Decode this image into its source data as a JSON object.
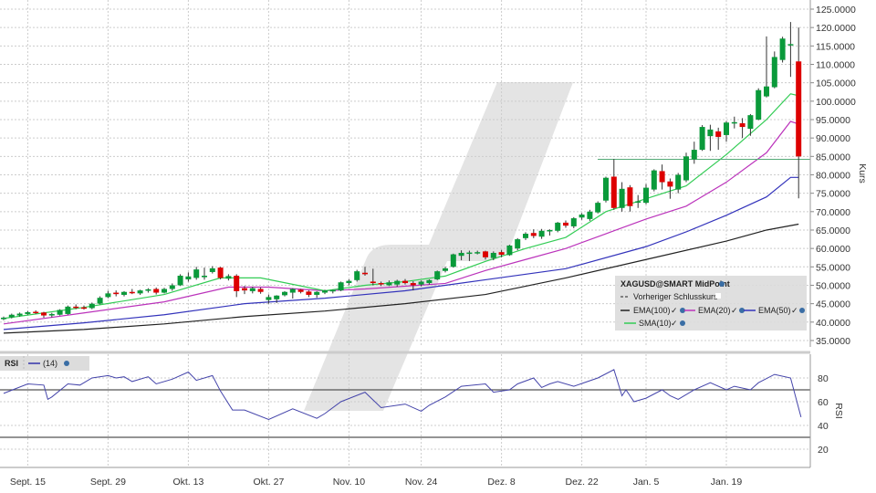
{
  "chart_data": {
    "type": "candlestick",
    "instrument_label": "XAGUSD@SMART MidPoint",
    "ylabel": "Kurs",
    "ylim": [
      32.5,
      127.5
    ],
    "yticks": [
      "125.0000",
      "120.0000",
      "115.0000",
      "110.0000",
      "105.0000",
      "100.0000",
      "95.0000",
      "90.0000",
      "85.0000",
      "80.0000",
      "75.0000",
      "70.0000",
      "65.0000",
      "60.0000",
      "55.0000",
      "50.0000",
      "45.0000",
      "40.0000",
      "35.0000"
    ],
    "grid": true,
    "x_axis_labels": [
      {
        "label": "Sept. 15",
        "i": 3
      },
      {
        "label": "Sept. 29",
        "i": 13
      },
      {
        "label": "Okt. 13",
        "i": 23
      },
      {
        "label": "Okt. 27",
        "i": 33
      },
      {
        "label": "Nov. 10",
        "i": 43
      },
      {
        "label": "Nov. 24",
        "i": 52
      },
      {
        "label": "Dez. 8",
        "i": 62
      },
      {
        "label": "Dez. 22",
        "i": 72
      },
      {
        "label": "Jan. 5",
        "i": 80
      },
      {
        "label": "Jan. 19",
        "i": 90
      }
    ],
    "ohlc": [
      [
        40.8,
        41.5,
        40.5,
        41.2
      ],
      [
        41.3,
        42.3,
        41,
        42
      ],
      [
        41.8,
        42.6,
        41.5,
        42.3
      ],
      [
        42.2,
        43,
        42,
        42.7
      ],
      [
        42.8,
        43.2,
        42.2,
        42.5
      ],
      [
        42.6,
        42.8,
        41.2,
        41.8
      ],
      [
        41.8,
        42.5,
        41.3,
        42.2
      ],
      [
        42,
        43.5,
        41.8,
        43.3
      ],
      [
        42.2,
        44.5,
        42,
        44.2
      ],
      [
        44.2,
        44.8,
        43.5,
        43.9
      ],
      [
        44,
        44.5,
        43.4,
        43.8
      ],
      [
        43.8,
        45.3,
        43.5,
        45
      ],
      [
        45,
        47,
        44.8,
        46.6
      ],
      [
        46.8,
        48.5,
        46.5,
        47.8
      ],
      [
        48,
        48.6,
        47,
        47.6
      ],
      [
        47.4,
        48.4,
        47,
        48.2
      ],
      [
        48.2,
        49,
        47.6,
        48
      ],
      [
        47.8,
        48.8,
        47.4,
        48.6
      ],
      [
        48.5,
        49.2,
        48,
        48.9
      ],
      [
        49,
        49.4,
        47.5,
        48
      ],
      [
        48,
        49.3,
        47.8,
        49
      ],
      [
        49,
        50.5,
        48.5,
        50
      ],
      [
        50,
        53,
        49.8,
        52.6
      ],
      [
        51.6,
        53.5,
        51,
        52.4
      ],
      [
        52,
        55,
        51.5,
        54.3
      ],
      [
        52.2,
        54.8,
        51.5,
        52.6
      ],
      [
        53.6,
        55.2,
        53.2,
        54.6
      ],
      [
        54.8,
        55,
        51.6,
        52
      ],
      [
        51.8,
        53,
        51.3,
        52.5
      ],
      [
        52.6,
        53,
        46.8,
        48.4
      ],
      [
        49.2,
        49.8,
        47.6,
        48.6
      ],
      [
        48.4,
        49.6,
        47.8,
        49.2
      ],
      [
        49,
        49.4,
        47.7,
        48.2
      ],
      [
        46,
        47.5,
        45,
        46.8
      ],
      [
        46.2,
        47.3,
        45.2,
        47.2
      ],
      [
        47.3,
        48.4,
        47,
        48.2
      ],
      [
        48,
        49.2,
        46.4,
        49
      ],
      [
        48.8,
        49,
        47.8,
        48.2
      ],
      [
        48.3,
        48.6,
        46.8,
        47.4
      ],
      [
        47.4,
        48.4,
        46.6,
        48.2
      ],
      [
        48,
        48.8,
        47.6,
        48.6
      ],
      [
        48.4,
        48.8,
        47.8,
        48.7
      ],
      [
        48.6,
        51,
        48.4,
        50.8
      ],
      [
        50.6,
        51.6,
        50,
        51.2
      ],
      [
        51.4,
        54.2,
        51,
        53.8
      ],
      [
        53.4,
        55,
        52.6,
        53
      ],
      [
        51,
        54.5,
        50,
        50.6
      ],
      [
        50.6,
        51,
        49.8,
        50.4
      ],
      [
        50,
        51.3,
        49.8,
        50.8
      ],
      [
        50.2,
        51.5,
        49.6,
        51.2
      ],
      [
        51.2,
        51.7,
        50.2,
        50.6
      ],
      [
        50.6,
        51.1,
        48.6,
        50
      ],
      [
        50.2,
        51.3,
        49.7,
        51
      ],
      [
        50.6,
        51.6,
        50.2,
        51.4
      ],
      [
        51.6,
        54,
        51.4,
        53.8
      ],
      [
        53.9,
        55,
        53.5,
        54.6
      ],
      [
        55,
        58.6,
        54.8,
        58.4
      ],
      [
        58,
        59.5,
        56.8,
        58.8
      ],
      [
        58.8,
        59.4,
        56.6,
        58.9
      ],
      [
        59,
        59.4,
        58.4,
        59
      ],
      [
        59.2,
        59.4,
        57,
        57.6
      ],
      [
        57.4,
        59.2,
        56.8,
        58.8
      ],
      [
        59,
        59.6,
        57.6,
        58.3
      ],
      [
        58.2,
        61,
        58,
        60.8
      ],
      [
        60,
        62.8,
        59.5,
        62.5
      ],
      [
        62.8,
        64.4,
        62.3,
        64
      ],
      [
        64.2,
        65.2,
        62.8,
        63.4
      ],
      [
        63.2,
        65.3,
        62.6,
        64.8
      ],
      [
        64.8,
        65.2,
        63.5,
        65
      ],
      [
        64.8,
        67.2,
        64.4,
        67
      ],
      [
        67,
        67.6,
        65.6,
        66.2
      ],
      [
        66,
        68.5,
        65.5,
        68.2
      ],
      [
        68.4,
        69.6,
        67.8,
        69.2
      ],
      [
        68,
        70.5,
        67.5,
        70
      ],
      [
        69.8,
        72.8,
        69.5,
        72.4
      ],
      [
        73,
        79.5,
        72.5,
        79.2
      ],
      [
        79.5,
        84.3,
        70.5,
        71
      ],
      [
        71,
        78,
        70,
        76.2
      ],
      [
        76.6,
        77.2,
        70,
        71.5
      ],
      [
        72.5,
        74.5,
        71,
        72.8
      ],
      [
        72.4,
        77.5,
        72,
        76.5
      ],
      [
        76,
        81.5,
        75.5,
        81.2
      ],
      [
        81,
        82.8,
        76,
        78
      ],
      [
        78.2,
        79,
        73.5,
        76.8
      ],
      [
        76,
        80.5,
        75,
        80
      ],
      [
        78.5,
        86,
        78,
        85
      ],
      [
        84.2,
        89,
        83,
        86.8
      ],
      [
        86.8,
        93.5,
        86.5,
        93
      ],
      [
        90.5,
        93.6,
        86.5,
        92.3
      ],
      [
        91.8,
        92.8,
        86.8,
        90.3
      ],
      [
        90.8,
        94.6,
        89,
        94.2
      ],
      [
        94,
        95.8,
        92.6,
        94.3
      ],
      [
        94,
        95.4,
        90,
        93
      ],
      [
        92.5,
        96.5,
        90.6,
        96.2
      ],
      [
        95,
        103.5,
        94.8,
        103
      ],
      [
        101.3,
        117.6,
        101,
        104
      ],
      [
        103.8,
        113.5,
        103.5,
        112
      ],
      [
        111.2,
        117.5,
        110.5,
        117
      ],
      [
        115.3,
        121.5,
        106.6,
        115.5
      ],
      [
        110.8,
        120,
        73.6,
        85
      ]
    ],
    "previous_close_level": 84.2,
    "colors": {
      "up": "#0a9a3a",
      "down": "#dd0000",
      "wick": "#333333",
      "sma10": "#33cc55",
      "ema20": "#bb33bb",
      "ema50": "#3333bb",
      "ema100": "#222222",
      "rsi": "#4444aa"
    },
    "indicators": [
      {
        "name": "SMA(10)",
        "color": "#33cc55",
        "points": [
          [
            0,
            41
          ],
          [
            10,
            44
          ],
          [
            20,
            47.5
          ],
          [
            27,
            52
          ],
          [
            32,
            52
          ],
          [
            40,
            48.5
          ],
          [
            45,
            50
          ],
          [
            50,
            51
          ],
          [
            55,
            52.5
          ],
          [
            60,
            56.5
          ],
          [
            65,
            60
          ],
          [
            70,
            63
          ],
          [
            75,
            70
          ],
          [
            80,
            73.5
          ],
          [
            85,
            77
          ],
          [
            90,
            85.5
          ],
          [
            95,
            95
          ],
          [
            98,
            102
          ],
          [
            99,
            101.5
          ]
        ]
      },
      {
        "name": "EMA(20)",
        "color": "#bb33bb",
        "points": [
          [
            0,
            39.5
          ],
          [
            10,
            42.5
          ],
          [
            20,
            45.5
          ],
          [
            28,
            49.5
          ],
          [
            33,
            49.5
          ],
          [
            40,
            48.5
          ],
          [
            45,
            49
          ],
          [
            55,
            50.5
          ],
          [
            60,
            54
          ],
          [
            65,
            57
          ],
          [
            70,
            60
          ],
          [
            75,
            64
          ],
          [
            80,
            68
          ],
          [
            85,
            71.5
          ],
          [
            90,
            78
          ],
          [
            95,
            86
          ],
          [
            98,
            94.5
          ],
          [
            99,
            93.8
          ]
        ]
      },
      {
        "name": "EMA(50)",
        "color": "#3333bb",
        "points": [
          [
            0,
            38
          ],
          [
            10,
            39.8
          ],
          [
            20,
            42
          ],
          [
            30,
            45
          ],
          [
            40,
            46.5
          ],
          [
            50,
            48.5
          ],
          [
            60,
            51.5
          ],
          [
            70,
            54.5
          ],
          [
            80,
            60.5
          ],
          [
            85,
            64.5
          ],
          [
            90,
            69
          ],
          [
            95,
            74
          ],
          [
            98,
            79.3
          ],
          [
            99,
            79.3
          ]
        ]
      },
      {
        "name": "EMA(100)",
        "color": "#222222",
        "points": [
          [
            0,
            37
          ],
          [
            10,
            38
          ],
          [
            20,
            39.5
          ],
          [
            30,
            41.5
          ],
          [
            40,
            43
          ],
          [
            50,
            45
          ],
          [
            60,
            47.5
          ],
          [
            70,
            52
          ],
          [
            80,
            57
          ],
          [
            90,
            62
          ],
          [
            95,
            65
          ],
          [
            99,
            66.6
          ]
        ]
      }
    ],
    "legend": {
      "title": "XAGUSD@SMART MidPoint",
      "prev_close": "Vorheriger Schlusskurs",
      "items": [
        "EMA(100)",
        "EMA(20)",
        "EMA(50)",
        "SMA(10)"
      ]
    },
    "rsi": {
      "label": "RSI",
      "period": "(14)",
      "ylabel": "RSI",
      "ylim": [
        0,
        100
      ],
      "yticks": [
        "80",
        "60",
        "40",
        "20"
      ],
      "levels": [
        70,
        30
      ],
      "points": [
        [
          0,
          67
        ],
        [
          3,
          75
        ],
        [
          5,
          74
        ],
        [
          5.5,
          62
        ],
        [
          6,
          64
        ],
        [
          8,
          75
        ],
        [
          9.5,
          74
        ],
        [
          11,
          80
        ],
        [
          13,
          82
        ],
        [
          14,
          80
        ],
        [
          15,
          81
        ],
        [
          16,
          77
        ],
        [
          18,
          81
        ],
        [
          19,
          75
        ],
        [
          21,
          79
        ],
        [
          23,
          85
        ],
        [
          24,
          78
        ],
        [
          26,
          82
        ],
        [
          27,
          69
        ],
        [
          28.5,
          53
        ],
        [
          30,
          53
        ],
        [
          33,
          45
        ],
        [
          36,
          54
        ],
        [
          39,
          46
        ],
        [
          40,
          50
        ],
        [
          42,
          60
        ],
        [
          45,
          68
        ],
        [
          47,
          55
        ],
        [
          50,
          58
        ],
        [
          52,
          52
        ],
        [
          53,
          57
        ],
        [
          55,
          64
        ],
        [
          57,
          73
        ],
        [
          60,
          75
        ],
        [
          61,
          68
        ],
        [
          63,
          70
        ],
        [
          64,
          75
        ],
        [
          66,
          80
        ],
        [
          67,
          72
        ],
        [
          68,
          75
        ],
        [
          69,
          77
        ],
        [
          71,
          73
        ],
        [
          74,
          80
        ],
        [
          76,
          87
        ],
        [
          77,
          65
        ],
        [
          77.5,
          70
        ],
        [
          78.5,
          60
        ],
        [
          80,
          63
        ],
        [
          82,
          70
        ],
        [
          83,
          65
        ],
        [
          84,
          62
        ],
        [
          86,
          70
        ],
        [
          88,
          76
        ],
        [
          90,
          70
        ],
        [
          91,
          73
        ],
        [
          93,
          70
        ],
        [
          94,
          76
        ],
        [
          96,
          83
        ],
        [
          98,
          80
        ],
        [
          99.3,
          47
        ]
      ]
    }
  }
}
